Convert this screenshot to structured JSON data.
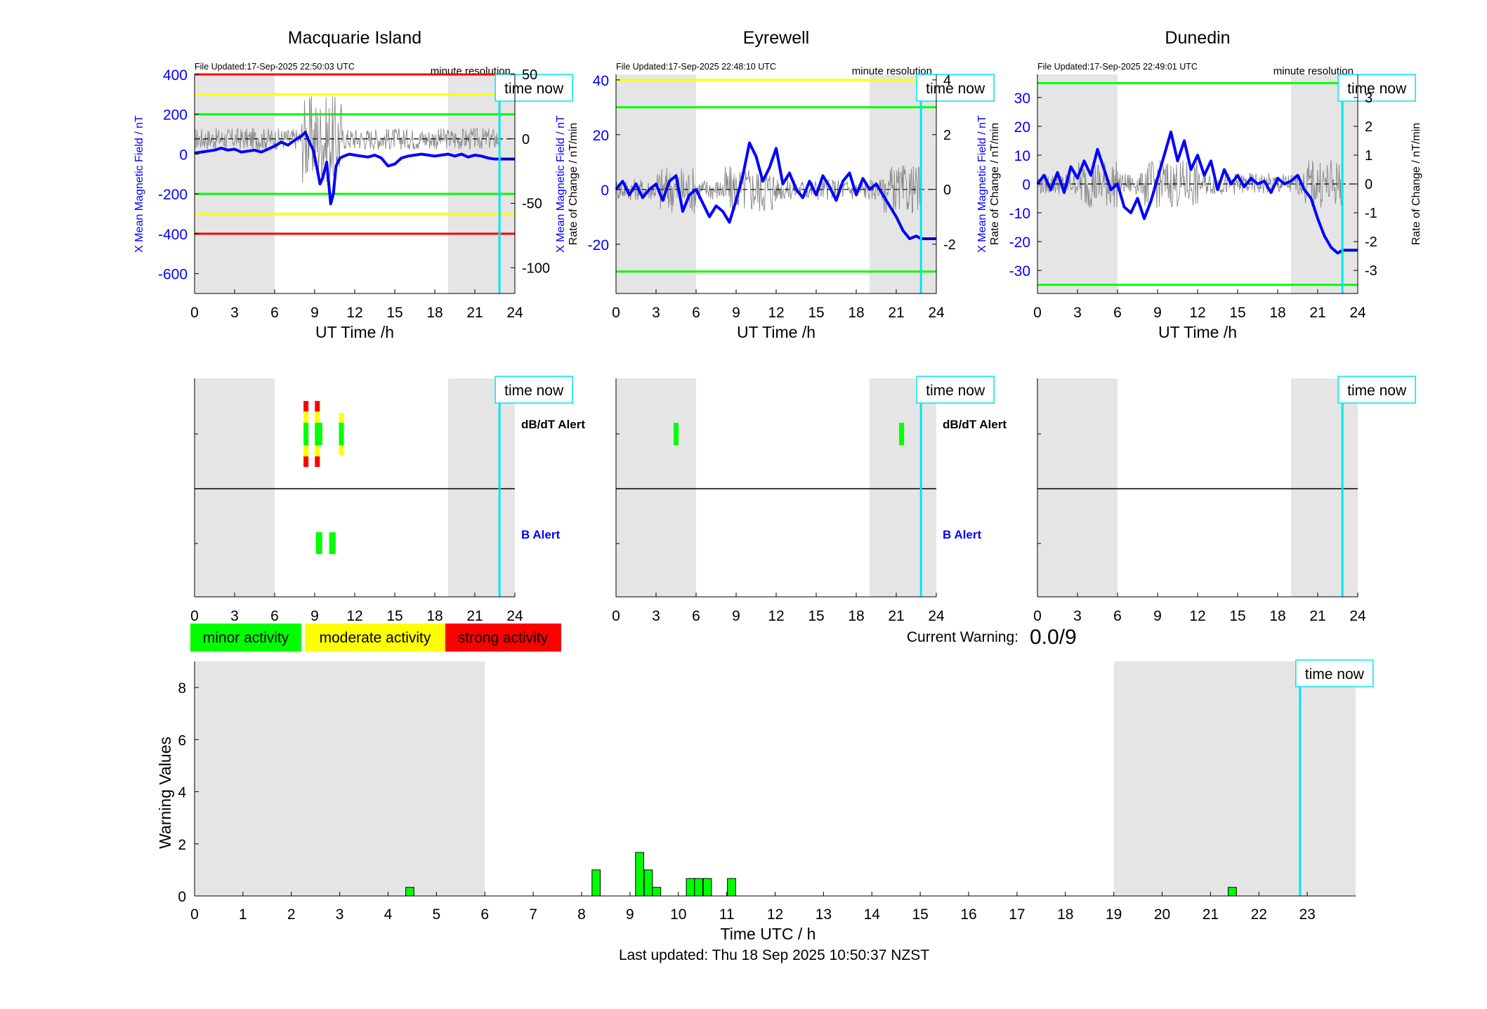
{
  "chart_data": [
    {
      "type": "line",
      "title": "Macquarie Island",
      "file_updated": "File Updated:17-Sep-2025 22:50:03 UTC",
      "resolution": "minute resolution",
      "xlabel": "UT Time /h",
      "ylabel_left": "X Mean Magnetic Field / nT",
      "ylabel_right": "Rate of Change / nT/min",
      "xlim": [
        0,
        24
      ],
      "ylim_left": [
        -700,
        400
      ],
      "ylim_right": [
        -120,
        50
      ],
      "xticks": [
        0,
        3,
        6,
        9,
        12,
        15,
        18,
        21,
        24
      ],
      "yticks_left": [
        400,
        200,
        0,
        -200,
        -400,
        -600
      ],
      "yticks_right": [
        50,
        0,
        -50,
        -100
      ],
      "night_bands": [
        [
          0,
          6
        ],
        [
          19,
          24
        ]
      ],
      "thresholds": [
        {
          "value": 400,
          "color": "#ff0000"
        },
        {
          "value": 300,
          "color": "#ffff00"
        },
        {
          "value": 200,
          "color": "#00ff00"
        },
        {
          "value": -200,
          "color": "#00ff00"
        },
        {
          "value": -300,
          "color": "#ffff00"
        },
        {
          "value": -400,
          "color": "#ff0000"
        }
      ],
      "time_now": 22.85,
      "time_now_label": "time now",
      "series": [
        {
          "x": [
            0,
            0.5,
            1,
            1.5,
            2,
            2.5,
            3,
            3.5,
            4,
            4.5,
            5,
            5.5,
            6,
            6.5,
            7,
            7.5,
            8,
            8.3,
            8.6,
            8.9,
            9.2,
            9.4,
            9.6,
            9.9,
            10.2,
            10.4,
            10.6,
            10.9,
            11.2,
            11.6,
            12,
            12.5,
            13,
            13.5,
            14,
            14.5,
            15,
            15.5,
            16,
            16.5,
            17,
            17.5,
            18,
            18.5,
            19,
            19.5,
            20,
            20.5,
            21,
            21.5,
            22,
            22.5,
            22.85
          ],
          "values": [
            5,
            10,
            15,
            20,
            30,
            20,
            25,
            10,
            15,
            20,
            10,
            25,
            40,
            60,
            45,
            70,
            90,
            110,
            60,
            20,
            -80,
            -150,
            -120,
            -40,
            -250,
            -200,
            -60,
            -20,
            -10,
            0,
            -5,
            -10,
            -15,
            -5,
            -20,
            -60,
            -50,
            -20,
            -10,
            -5,
            0,
            -5,
            -10,
            -5,
            0,
            -10,
            0,
            -15,
            -5,
            -10,
            -20,
            -25,
            -25
          ]
        }
      ]
    },
    {
      "type": "line",
      "title": "Eyrewell",
      "file_updated": "File Updated:17-Sep-2025 22:48:10 UTC",
      "resolution": "minute resolution",
      "xlabel": "UT Time /h",
      "ylabel_left": "X Mean Magnetic Field / nT",
      "ylabel_right": "Rate of Change / nT/min",
      "xlim": [
        0,
        24
      ],
      "ylim_left": [
        -38,
        42
      ],
      "ylim_right": [
        -3.8,
        4.2
      ],
      "xticks": [
        0,
        3,
        6,
        9,
        12,
        15,
        18,
        21,
        24
      ],
      "yticks_left": [
        40,
        20,
        0,
        -20
      ],
      "yticks_right": [
        4,
        2,
        0,
        -2
      ],
      "night_bands": [
        [
          0,
          6
        ],
        [
          19,
          24
        ]
      ],
      "thresholds": [
        {
          "value": 40,
          "color": "#ffff00"
        },
        {
          "value": 30,
          "color": "#00ff00"
        },
        {
          "value": -30,
          "color": "#00ff00"
        }
      ],
      "time_now": 22.85,
      "time_now_label": "time now",
      "series": [
        {
          "x": [
            0,
            0.5,
            1,
            1.5,
            2,
            2.5,
            3,
            3.5,
            4,
            4.5,
            5,
            5.5,
            6,
            6.5,
            7,
            7.5,
            8,
            8.5,
            9,
            9.5,
            10,
            10.5,
            11,
            11.5,
            12,
            12.5,
            13,
            13.5,
            14,
            14.5,
            15,
            15.5,
            16,
            16.5,
            17,
            17.5,
            18,
            18.5,
            19,
            19.5,
            20,
            20.5,
            21,
            21.5,
            22,
            22.5,
            22.85
          ],
          "values": [
            0,
            3,
            -2,
            2,
            -3,
            0,
            2,
            -4,
            3,
            5,
            -8,
            -2,
            0,
            -5,
            -10,
            -6,
            -8,
            -12,
            -4,
            5,
            17,
            12,
            3,
            8,
            15,
            2,
            6,
            0,
            -3,
            3,
            -2,
            5,
            1,
            -4,
            3,
            6,
            -2,
            4,
            0,
            2,
            -2,
            -6,
            -10,
            -15,
            -18,
            -17,
            -18
          ]
        }
      ]
    },
    {
      "type": "line",
      "title": "Dunedin",
      "file_updated": "File Updated:17-Sep-2025 22:49:01 UTC",
      "resolution": "minute resolution",
      "xlabel": "UT Time /h",
      "ylabel_left": "X Mean Magnetic Field / nT",
      "ylabel_right": "Rate of Change / nT/min",
      "xlim": [
        0,
        24
      ],
      "ylim_left": [
        -38,
        38
      ],
      "ylim_right": [
        -3.8,
        3.8
      ],
      "xticks": [
        0,
        3,
        6,
        9,
        12,
        15,
        18,
        21,
        24
      ],
      "yticks_left": [
        30,
        20,
        10,
        0,
        -10,
        -20,
        -30
      ],
      "yticks_right": [
        3,
        2,
        1,
        0,
        -1,
        -2,
        -3
      ],
      "night_bands": [
        [
          0,
          6
        ],
        [
          19,
          24
        ]
      ],
      "thresholds": [
        {
          "value": 35,
          "color": "#00ff00"
        },
        {
          "value": -35,
          "color": "#00ff00"
        }
      ],
      "time_now": 22.85,
      "time_now_label": "time now",
      "series": [
        {
          "x": [
            0,
            0.5,
            1,
            1.5,
            2,
            2.5,
            3,
            3.5,
            4,
            4.5,
            5,
            5.5,
            6,
            6.5,
            7,
            7.5,
            8,
            8.5,
            9,
            9.5,
            10,
            10.5,
            11,
            11.5,
            12,
            12.5,
            13,
            13.5,
            14,
            14.5,
            15,
            15.5,
            16,
            16.5,
            17,
            17.5,
            18,
            18.5,
            19,
            19.5,
            20,
            20.5,
            21,
            21.5,
            22,
            22.5,
            22.85
          ],
          "values": [
            0,
            3,
            -2,
            4,
            -3,
            6,
            2,
            8,
            3,
            12,
            5,
            -2,
            0,
            -8,
            -10,
            -5,
            -12,
            -6,
            2,
            10,
            18,
            8,
            15,
            5,
            10,
            3,
            8,
            -2,
            5,
            0,
            3,
            -1,
            2,
            0,
            1,
            -3,
            2,
            0,
            1,
            3,
            -2,
            -5,
            -12,
            -18,
            -22,
            -24,
            -23
          ]
        }
      ]
    },
    {
      "type": "bar",
      "panel": "alerts",
      "station": "Macquarie Island",
      "xlim": [
        0,
        24
      ],
      "xticks": [
        0,
        3,
        6,
        9,
        12,
        15,
        18,
        21,
        24
      ],
      "night_bands": [
        [
          0,
          6
        ],
        [
          19,
          24
        ]
      ],
      "row_labels": [
        "dB/dT Alert",
        "B Alert"
      ],
      "time_now": 22.85,
      "time_now_label": "time now",
      "dbdt_events": [
        {
          "x": 8.35,
          "level": "strong"
        },
        {
          "x": 9.2,
          "level": "strong"
        },
        {
          "x": 11.0,
          "level": "moderate"
        }
      ],
      "b_events": [
        {
          "x": 9.3,
          "level": "minor"
        },
        {
          "x": 10.3,
          "level": "minor"
        }
      ]
    },
    {
      "type": "bar",
      "panel": "alerts",
      "station": "Eyrewell",
      "xlim": [
        0,
        24
      ],
      "xticks": [
        0,
        3,
        6,
        9,
        12,
        15,
        18,
        21,
        24
      ],
      "night_bands": [
        [
          0,
          6
        ],
        [
          19,
          24
        ]
      ],
      "row_labels": [
        "dB/dT Alert",
        "B Alert"
      ],
      "time_now": 22.85,
      "time_now_label": "time now",
      "dbdt_events": [
        {
          "x": 4.5,
          "level": "minor"
        },
        {
          "x": 21.4,
          "level": "minor"
        }
      ],
      "b_events": []
    },
    {
      "type": "bar",
      "panel": "alerts",
      "station": "Dunedin",
      "xlim": [
        0,
        24
      ],
      "xticks": [
        0,
        3,
        6,
        9,
        12,
        15,
        18,
        21,
        24
      ],
      "night_bands": [
        [
          0,
          6
        ],
        [
          19,
          24
        ]
      ],
      "row_labels": [],
      "time_now": 22.85,
      "time_now_label": "time now",
      "dbdt_events": [],
      "b_events": []
    },
    {
      "type": "bar",
      "panel": "warning",
      "xlabel": "Time UTC / h",
      "ylabel": "Warning Values",
      "xlim": [
        0,
        24
      ],
      "ylim": [
        0,
        9
      ],
      "xticks": [
        0,
        1,
        2,
        3,
        4,
        5,
        6,
        7,
        8,
        9,
        10,
        11,
        12,
        13,
        14,
        15,
        16,
        17,
        18,
        19,
        20,
        21,
        22,
        23
      ],
      "yticks": [
        0,
        2,
        4,
        6,
        8
      ],
      "night_bands": [
        [
          0,
          6
        ],
        [
          19,
          24
        ]
      ],
      "time_now": 22.85,
      "time_now_label": "time now",
      "bar_width": 0.17,
      "x": [
        4.45,
        8.3,
        9.2,
        9.38,
        9.55,
        10.25,
        10.42,
        10.6,
        11.1,
        21.45
      ],
      "values": [
        0.33,
        1.0,
        1.67,
        1.0,
        0.33,
        0.67,
        0.67,
        0.67,
        0.67,
        0.33
      ]
    }
  ],
  "legend": {
    "minor": {
      "label": "minor activity",
      "color": "#00ff00"
    },
    "moderate": {
      "label": "moderate activity",
      "color": "#ffff00"
    },
    "strong": {
      "label": "strong activity",
      "color": "#ff0000"
    }
  },
  "current_warning": {
    "label": "Current Warning:",
    "value": "0.0/9"
  },
  "footer": "Last updated: Thu 18 Sep 2025 10:50:37 NZST"
}
